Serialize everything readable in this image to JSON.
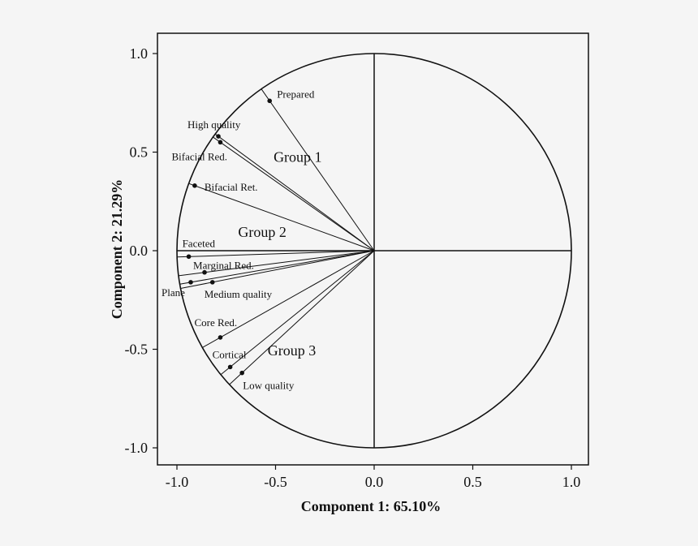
{
  "chart_data": {
    "type": "scatter",
    "xlabel": "Component 1: 65.10%",
    "ylabel": "Component 2: 21.29%",
    "xlim": [
      -1.1,
      1.1
    ],
    "ylim": [
      -1.1,
      1.1
    ],
    "x_ticks": [
      "-1.0",
      "-0.5",
      "0.0",
      "0.5",
      "1.0"
    ],
    "y_ticks": [
      "1.0",
      "0.5",
      "0.0",
      "-0.5",
      "-1.0"
    ],
    "unit_circle": true,
    "points": [
      {
        "label": "Prepared",
        "x": -0.53,
        "y": 0.76
      },
      {
        "label": "High quality",
        "x": -0.79,
        "y": 0.58
      },
      {
        "label": "Bifacial Red.",
        "x": -0.78,
        "y": 0.55
      },
      {
        "label": "Bifacial Ret.",
        "x": -0.91,
        "y": 0.33
      },
      {
        "label": "Faceted",
        "x": -0.94,
        "y": -0.03
      },
      {
        "label": "Marginal Red.",
        "x": -0.86,
        "y": -0.11
      },
      {
        "label": "Plane",
        "x": -0.93,
        "y": -0.16
      },
      {
        "label": "Medium quality",
        "x": -0.82,
        "y": -0.16
      },
      {
        "label": "Core Red.",
        "x": -0.78,
        "y": -0.44
      },
      {
        "label": "Cortical",
        "x": -0.73,
        "y": -0.59
      },
      {
        "label": "Low quality",
        "x": -0.67,
        "y": -0.62
      }
    ],
    "groups": [
      {
        "label": "Group 1",
        "x": -0.51,
        "y": 0.45
      },
      {
        "label": "Group 2",
        "x": -0.69,
        "y": 0.07
      },
      {
        "label": "Group 3",
        "x": -0.54,
        "y": -0.53
      }
    ]
  }
}
